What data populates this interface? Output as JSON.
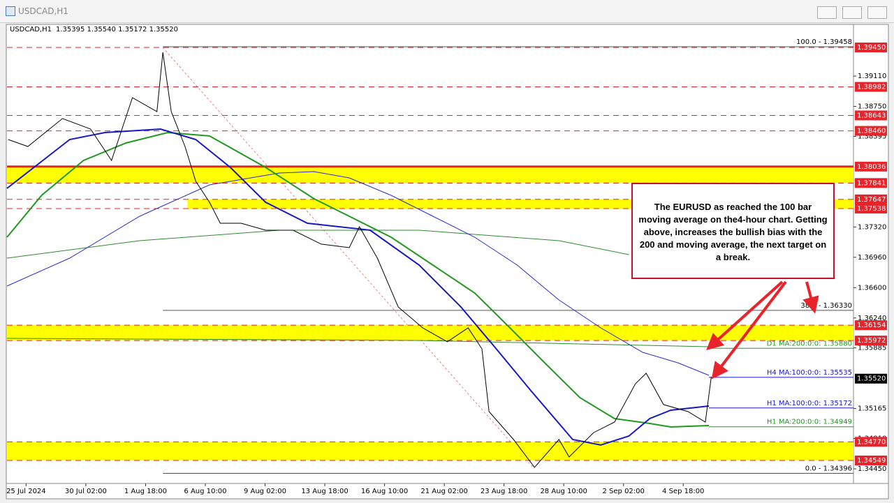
{
  "window": {
    "title": "USDCAD,H1"
  },
  "chart_data": {
    "type": "line",
    "title": "USDCAD,H1",
    "subtitle": "1.35395 1.35540 1.35172 1.35520",
    "xlim": [
      -0.32,
      13.85
    ],
    "ylim": [
      1.34301,
      1.39723
    ],
    "xticks": [
      {
        "value": 0,
        "label": "25 Jul 2024"
      },
      {
        "value": 1,
        "label": "30 Jul 02:00"
      },
      {
        "value": 2,
        "label": "1 Aug 18:00"
      },
      {
        "value": 3,
        "label": "6 Aug 10:00"
      },
      {
        "value": 4,
        "label": "9 Aug 02:00"
      },
      {
        "value": 5,
        "label": "13 Aug 18:00"
      },
      {
        "value": 6,
        "label": "16 Aug 10:00"
      },
      {
        "value": 7,
        "label": "21 Aug 02:00"
      },
      {
        "value": 8,
        "label": "23 Aug 18:00"
      },
      {
        "value": 9,
        "label": "28 Aug 10:00"
      },
      {
        "value": 10,
        "label": "2 Sep 02:00"
      },
      {
        "value": 11,
        "label": "4 Sep 18:00"
      }
    ],
    "yticks": [
      {
        "value": 1.3911,
        "label": "1.39110"
      },
      {
        "value": 1.3875,
        "label": "1.38750"
      },
      {
        "value": 1.38395,
        "label": "1.38395"
      },
      {
        "value": 1.3732,
        "label": "1.37320"
      },
      {
        "value": 1.3696,
        "label": "1.36960"
      },
      {
        "value": 1.366,
        "label": "1.36600"
      },
      {
        "value": 1.3624,
        "label": "1.36240"
      },
      {
        "value": 1.35885,
        "label": "1.35885"
      },
      {
        "value": 1.35165,
        "label": "1.35165"
      },
      {
        "value": 1.3481,
        "label": "1.34810"
      },
      {
        "value": 1.3445,
        "label": "1.34450"
      }
    ],
    "series": [
      {
        "color": "#2e8b2e",
        "width": 1,
        "x": [
          -0.32,
          1.9,
          4.24,
          6.58,
          8.92,
          10.09
        ],
        "values": [
          1.3695,
          1.37157,
          1.37281,
          1.37281,
          1.37157,
          1.36991
        ]
      },
      {
        "color": "#2e8b2e",
        "width": 1,
        "x": [
          -0.32,
          6.58,
          11.43
        ],
        "values": [
          1.35998,
          1.35973,
          1.35899
        ]
      },
      {
        "color": "#2a2ad0",
        "width": 1,
        "x": [
          -0.32,
          0.73,
          1.9,
          3.07,
          4.24,
          4.82,
          5.41,
          6.11,
          6.81,
          7.51,
          8.22,
          8.92,
          9.62,
          10.32,
          10.91,
          11.43
        ],
        "values": [
          1.36619,
          1.3695,
          1.37447,
          1.37819,
          1.3796,
          1.37976,
          1.37902,
          1.37695,
          1.37447,
          1.37198,
          1.36867,
          1.36453,
          1.36122,
          1.35832,
          1.35708,
          1.35559
        ]
      },
      {
        "color": "#1f9a1f",
        "width": 2,
        "x": [
          -0.32,
          0.26,
          0.96,
          1.67,
          2.37,
          3.07,
          4.01,
          4.82,
          5.41,
          6.11,
          6.81,
          7.51,
          8.1,
          8.68,
          9.27,
          9.85,
          10.44,
          10.79,
          11.43
        ],
        "values": [
          1.37198,
          1.37695,
          1.38109,
          1.38316,
          1.3844,
          1.38399,
          1.38026,
          1.37654,
          1.37447,
          1.37198,
          1.36867,
          1.36536,
          1.36122,
          1.35708,
          1.35294,
          1.35046,
          1.34988,
          1.34947,
          1.34963
        ]
      },
      {
        "color": "#1818c8",
        "width": 2,
        "x": [
          -0.32,
          0.73,
          1.32,
          2.25,
          2.84,
          3.42,
          4.01,
          4.71,
          5.76,
          6.58,
          7.28,
          7.87,
          8.45,
          9.15,
          9.62,
          10.09,
          10.44,
          10.79,
          11.43
        ],
        "values": [
          1.37778,
          1.38357,
          1.3844,
          1.38481,
          1.38357,
          1.38026,
          1.37612,
          1.37364,
          1.37281,
          1.36867,
          1.3637,
          1.35874,
          1.35377,
          1.34798,
          1.34732,
          1.34839,
          1.35046,
          1.35145,
          1.35195
        ]
      },
      {
        "color": "#000000",
        "width": 1,
        "x": [
          -0.3,
          0.03,
          0.61,
          1.08,
          1.43,
          1.78,
          2.19,
          2.29,
          2.43,
          2.66,
          2.84,
          3.07,
          3.25,
          3.6,
          4.01,
          4.47,
          4.94,
          5.41,
          5.58,
          5.88,
          6.23,
          6.64,
          7.05,
          7.4,
          7.63,
          7.75,
          8.16,
          8.51,
          8.92,
          9.09,
          9.5,
          9.85,
          10.2,
          10.38,
          10.67,
          11.08,
          11.37,
          11.47
        ],
        "values": [
          1.38357,
          1.38274,
          1.38606,
          1.38481,
          1.38109,
          1.38854,
          1.38688,
          1.39392,
          1.38688,
          1.38274,
          1.37861,
          1.37612,
          1.37364,
          1.37364,
          1.37281,
          1.37281,
          1.37116,
          1.37074,
          1.37323,
          1.3695,
          1.3637,
          1.36122,
          1.35957,
          1.36122,
          1.35874,
          1.35129,
          1.34798,
          1.34467,
          1.34798,
          1.34591,
          1.3488,
          1.35005,
          1.3546,
          1.35584,
          1.35212,
          1.35129,
          1.35005,
          1.35543
        ]
      }
    ],
    "zones": [
      {
        "x_start": -0.32,
        "from": 1.38036,
        "to": 1.37841
      },
      {
        "x_start": 2.7,
        "from": 1.37647,
        "to": 1.37538
      },
      {
        "x_start": -0.32,
        "from": 1.36154,
        "to": 1.35972
      },
      {
        "x_start": -0.32,
        "from": 1.3477,
        "to": 1.34549
      }
    ],
    "zone_color": "#ffff00",
    "levels": [
      {
        "value": 1.3945,
        "label": "1.39450",
        "style": "dashed"
      },
      {
        "value": 1.38982,
        "label": "1.38982",
        "style": "dashed"
      },
      {
        "value": 1.38643,
        "label": "1.38643",
        "style": "dashed"
      },
      {
        "value": 1.3846,
        "label": "1.38460",
        "style": "dashed"
      },
      {
        "value": 1.38036,
        "label": "1.38036",
        "style": "solid"
      },
      {
        "value": 1.37841,
        "label": "1.37841",
        "style": "dashed"
      },
      {
        "value": 1.37647,
        "label": "1.37647",
        "style": "dashed"
      },
      {
        "value": 1.37538,
        "label": "1.37538",
        "style": "dashed"
      },
      {
        "value": 1.36154,
        "label": "1.36154",
        "style": "dashed"
      },
      {
        "value": 1.35972,
        "label": "1.35972",
        "style": "dashed"
      },
      {
        "value": 1.3477,
        "label": "1.34770",
        "style": "dashed"
      },
      {
        "value": 1.34549,
        "label": "1.34549",
        "style": "dashed"
      }
    ],
    "level_color": "#e8232a",
    "last_price": {
      "value": 1.3552,
      "label": "1.35520"
    },
    "fib_start": 2.29,
    "fib_levels": [
      {
        "value": 1.39458,
        "label": "100.0 - 1.39458"
      },
      {
        "value": 1.3633,
        "label": "38.2 - 1.36330"
      },
      {
        "value": 1.34396,
        "label": "0.0 - 1.34396"
      }
    ],
    "ma_labels": [
      {
        "value": 1.3588,
        "label": "D1 MA:200:0:0: 1.35880",
        "color": "#1f9a1f"
      },
      {
        "value": 1.35535,
        "label": "H4 MA:100:0:0: 1.35535",
        "color": "#1818c8"
      },
      {
        "value": 1.35172,
        "label": "H1 MA:100:0:0: 1.35172",
        "color": "#1818c8"
      },
      {
        "value": 1.34949,
        "label": "H1 MA:200:0:0: 1.34949",
        "color": "#1f9a1f"
      }
    ],
    "annotation": "The EURUSD as reached the 100 bar moving average on the4-hour chart. Getting above, increases the bullish bias with the 200 and moving average, the next target on a break."
  }
}
